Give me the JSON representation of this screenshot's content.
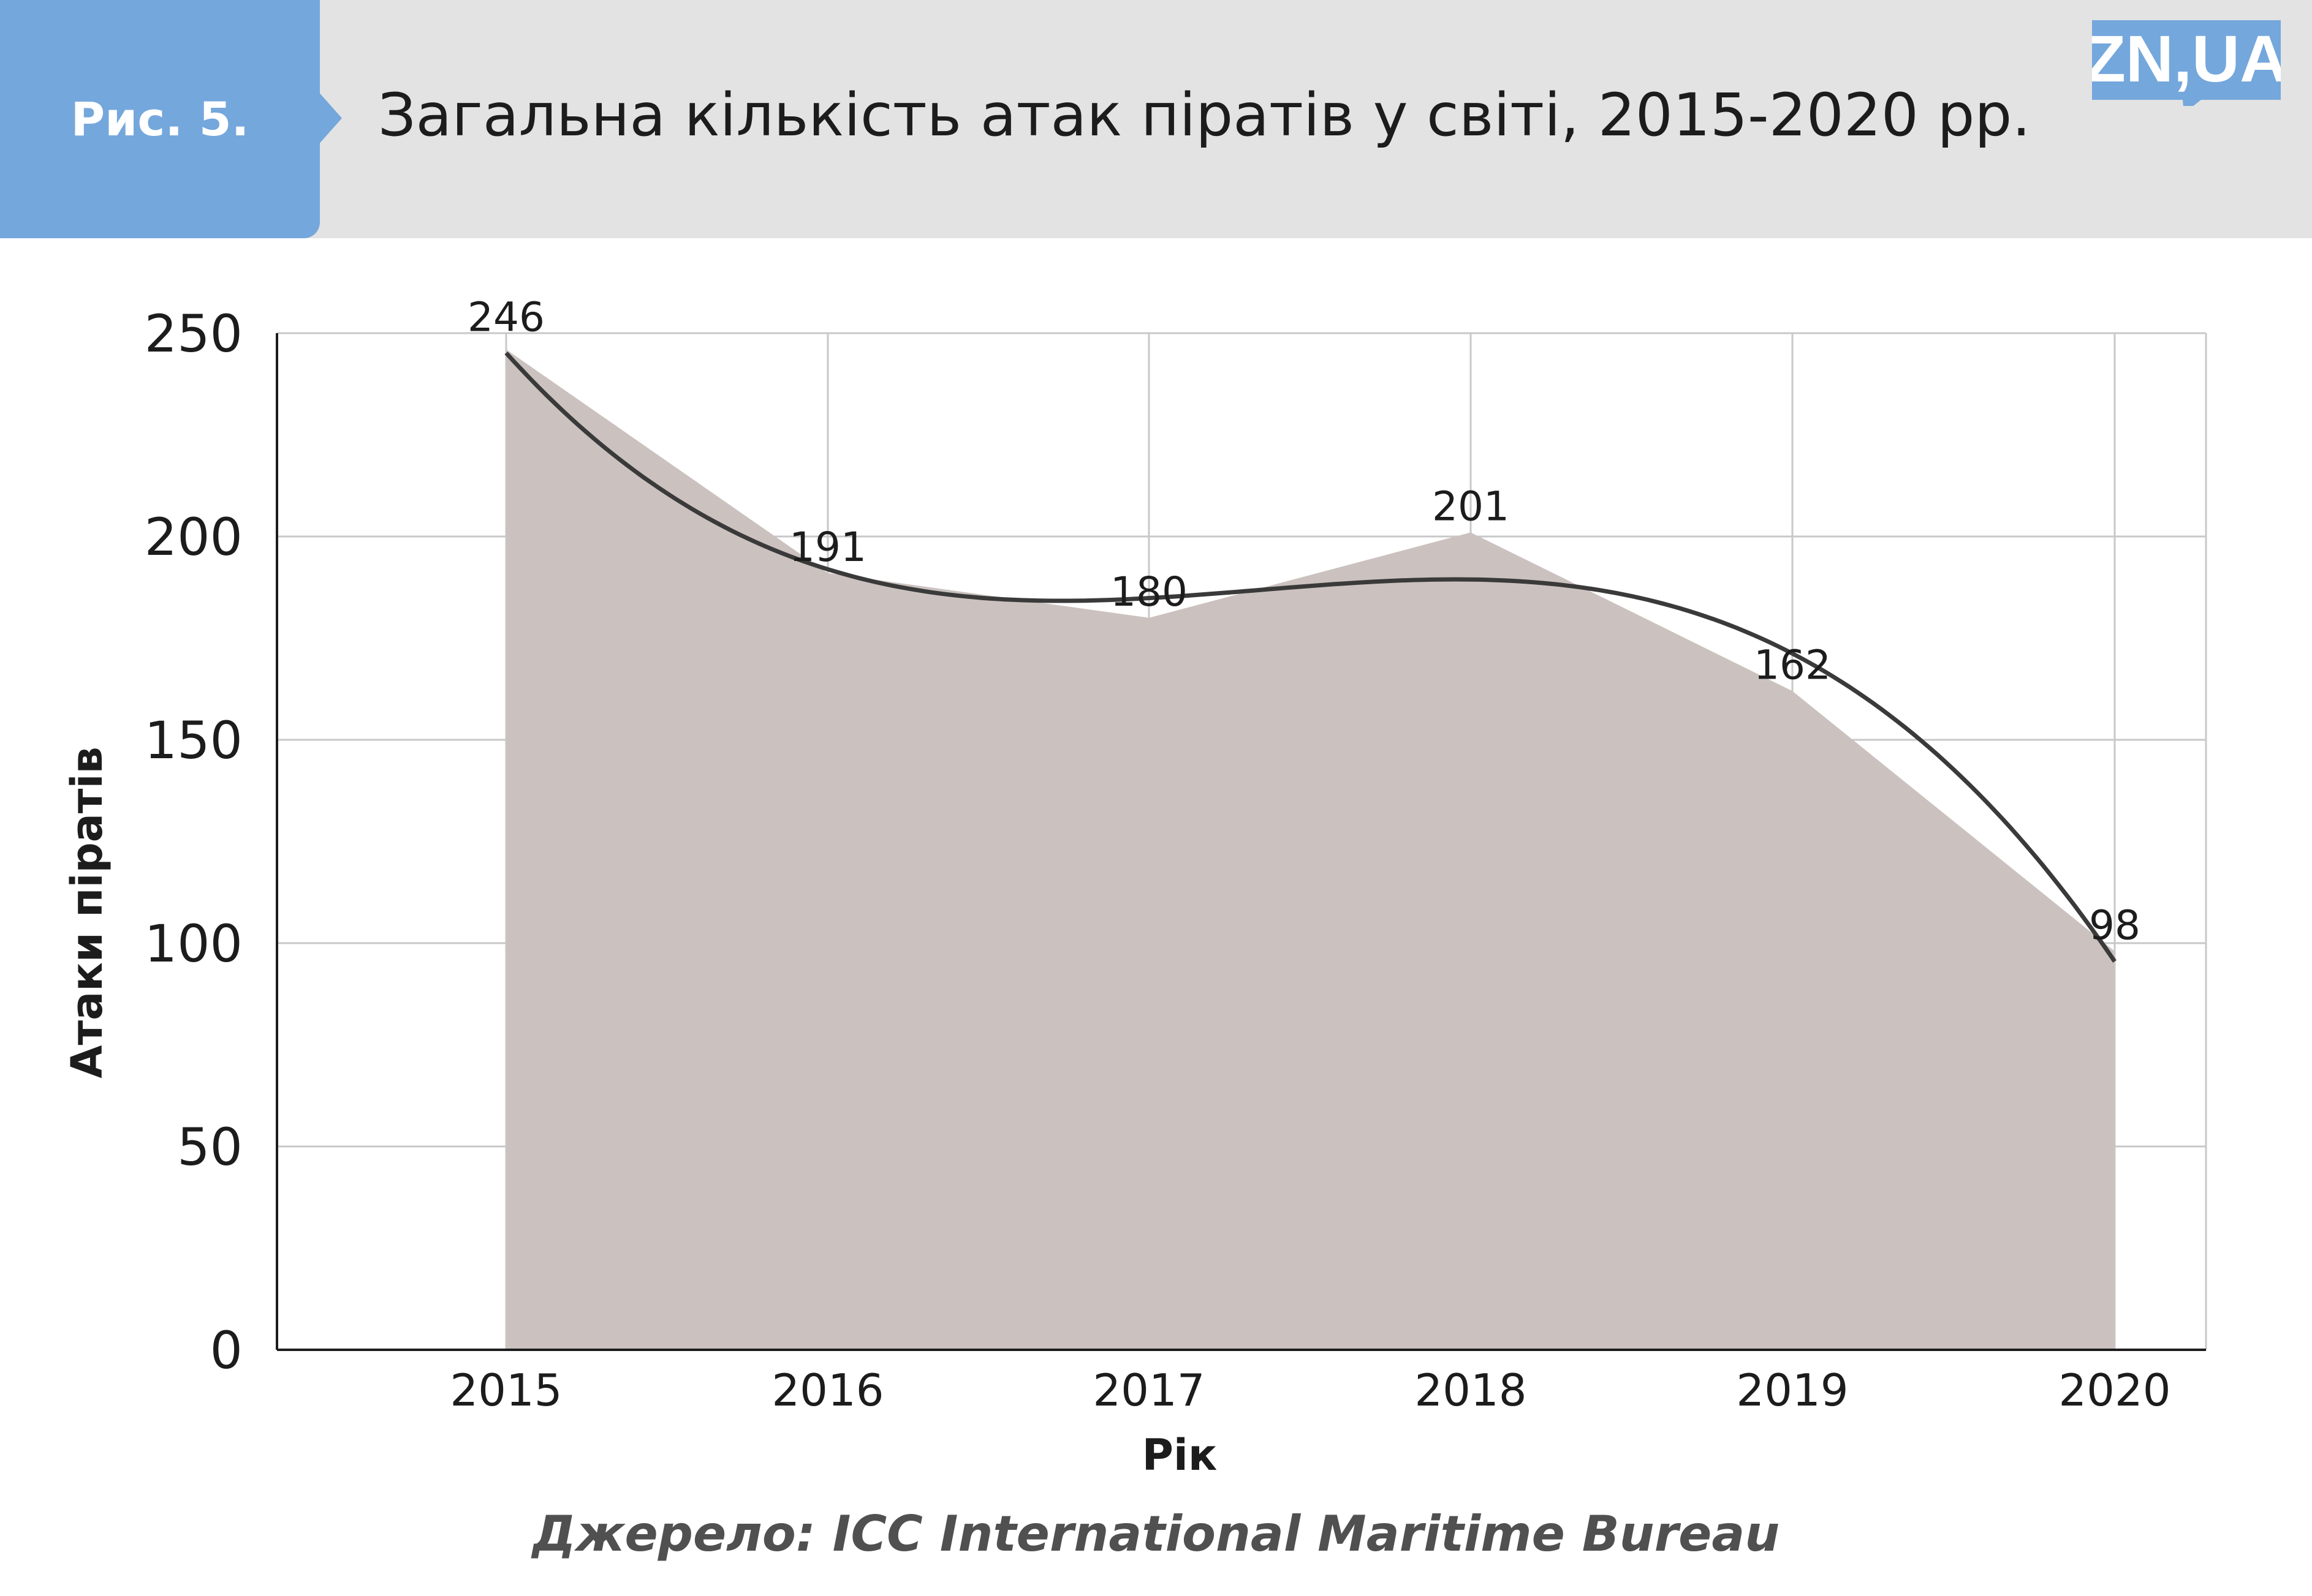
{
  "header": {
    "figure_label": "Рис. 5.",
    "title": "Загальна кількість атак піратів у світі, 2015-2020 рр."
  },
  "logo": {
    "text": "ZN,UA",
    "color": "#74a7dc",
    "icon": "speech-bubble-logo"
  },
  "source": "Джерело: ICC International Maritime Bureau",
  "colors": {
    "accent": "#74a7dc",
    "header_background": "#e3e3e3",
    "area_fill": "#cbc2bf",
    "trend_line": "#3a3a3a",
    "grid": "#c8c8c8"
  },
  "chart_data": {
    "type": "area",
    "categories": [
      "2015",
      "2016",
      "2017",
      "2018",
      "2019",
      "2020"
    ],
    "values": [
      246,
      191,
      180,
      201,
      162,
      98
    ],
    "data_labels": [
      "246",
      "191",
      "180",
      "201",
      "162",
      "98"
    ],
    "trend": "smoothed curve",
    "xlabel": "Рік",
    "ylabel": "Атаки піратів",
    "ylim": [
      0,
      250
    ],
    "yticks": [
      0,
      50,
      100,
      150,
      200,
      250
    ],
    "grid": true,
    "legend": false
  }
}
